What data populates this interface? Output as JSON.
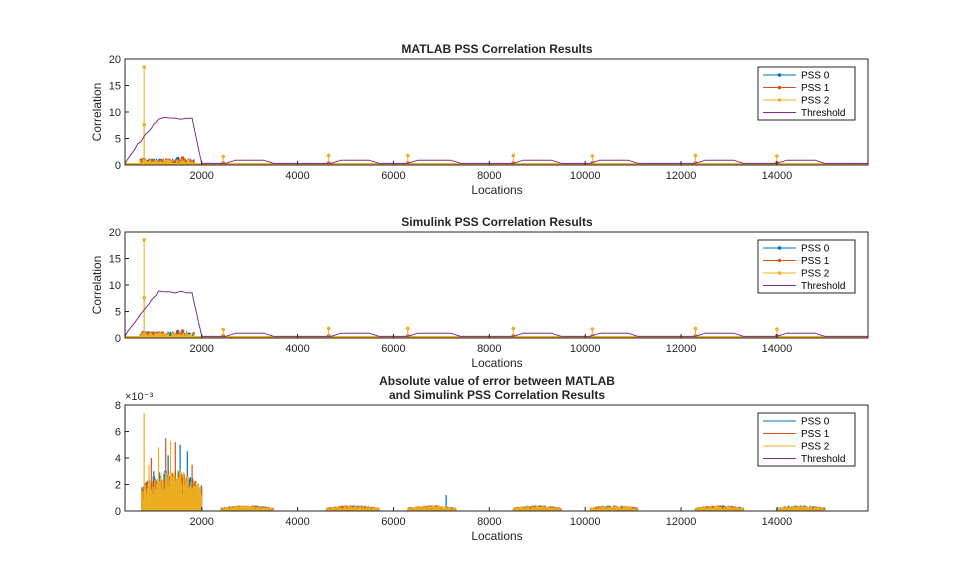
{
  "figure": {
    "colors": {
      "pss0": "#0072BD",
      "pss1": "#D95319",
      "pss2": "#EDB120",
      "threshold": "#7E2F8E"
    }
  },
  "chart_data": [
    {
      "type": "line",
      "title": "MATLAB PSS Correlation Results",
      "xlabel": "Locations",
      "ylabel": "Correlation",
      "xlim": [
        400,
        15900
      ],
      "ylim": [
        0,
        20
      ],
      "xticks": [
        "2000",
        "4000",
        "6000",
        "8000",
        "10000",
        "12000",
        "14000"
      ],
      "yticks": [
        "0",
        "5",
        "10",
        "15",
        "20"
      ],
      "exponent_label": "",
      "legend_position": "top-right",
      "markers": true,
      "series": [
        {
          "name": "PSS 0",
          "color_key": "pss0",
          "peaks": [
            [
              780,
              0.8
            ],
            [
              1500,
              1.2
            ],
            [
              2450,
              0.3
            ],
            [
              4650,
              0.3
            ],
            [
              6300,
              0.3
            ],
            [
              8500,
              0.3
            ],
            [
              10150,
              0.3
            ],
            [
              12300,
              0.3
            ],
            [
              14000,
              0.3
            ]
          ]
        },
        {
          "name": "PSS 1",
          "color_key": "pss1",
          "peaks": [
            [
              780,
              1.0
            ],
            [
              1600,
              1.3
            ],
            [
              2450,
              0.4
            ],
            [
              4650,
              0.4
            ],
            [
              6300,
              0.4
            ],
            [
              8500,
              0.4
            ],
            [
              10150,
              0.4
            ],
            [
              12300,
              0.4
            ],
            [
              14000,
              0.4
            ]
          ]
        },
        {
          "name": "PSS 2",
          "color_key": "pss2",
          "peaks": [
            [
              800,
              18.5
            ],
            [
              800,
              7.6
            ],
            [
              2450,
              1.6
            ],
            [
              4650,
              1.8
            ],
            [
              6300,
              1.8
            ],
            [
              8500,
              1.8
            ],
            [
              10150,
              1.7
            ],
            [
              12300,
              1.8
            ],
            [
              14000,
              1.7
            ]
          ]
        },
        {
          "name": "Threshold",
          "color_key": "threshold",
          "segments": [
            {
              "x": [
                400,
                800,
                1100,
                1800,
                2000
              ],
              "y": [
                0.3,
                5.5,
                8.8,
                8.6,
                0.3
              ]
            },
            {
              "x": [
                2000,
                2500,
                2700,
                3300,
                3500
              ],
              "y": [
                0.3,
                0.3,
                0.9,
                0.9,
                0.3
              ]
            },
            {
              "x": [
                3500,
                4700,
                4900,
                5500,
                5700
              ],
              "y": [
                0.3,
                0.3,
                0.9,
                0.9,
                0.3
              ]
            },
            {
              "x": [
                5700,
                6300,
                6500,
                7200,
                7400
              ],
              "y": [
                0.3,
                0.3,
                0.9,
                0.9,
                0.3
              ]
            },
            {
              "x": [
                7400,
                8500,
                8700,
                9300,
                9500
              ],
              "y": [
                0.3,
                0.3,
                0.9,
                0.9,
                0.3
              ]
            },
            {
              "x": [
                9500,
                10100,
                10300,
                10900,
                11100
              ],
              "y": [
                0.3,
                0.3,
                0.9,
                0.9,
                0.3
              ]
            },
            {
              "x": [
                11100,
                12300,
                12500,
                13100,
                13300
              ],
              "y": [
                0.3,
                0.3,
                0.9,
                0.9,
                0.3
              ]
            },
            {
              "x": [
                13300,
                14000,
                14200,
                14800,
                15000,
                15900
              ],
              "y": [
                0.3,
                0.3,
                0.9,
                0.9,
                0.3,
                0.3
              ]
            }
          ]
        }
      ]
    },
    {
      "type": "line",
      "title": "Simulink PSS Correlation Results",
      "xlabel": "Locations",
      "ylabel": "Correlation",
      "xlim": [
        400,
        15900
      ],
      "ylim": [
        0,
        20
      ],
      "xticks": [
        "2000",
        "4000",
        "6000",
        "8000",
        "10000",
        "12000",
        "14000"
      ],
      "yticks": [
        "0",
        "5",
        "10",
        "15",
        "20"
      ],
      "exponent_label": "",
      "legend_position": "top-right",
      "markers": true,
      "series": [
        {
          "name": "PSS 0",
          "color_key": "pss0",
          "peaks": [
            [
              780,
              0.8
            ],
            [
              1500,
              1.2
            ],
            [
              2450,
              0.3
            ],
            [
              4650,
              0.3
            ],
            [
              6300,
              0.3
            ],
            [
              8500,
              0.3
            ],
            [
              10150,
              0.3
            ],
            [
              12300,
              0.3
            ],
            [
              14000,
              0.3
            ]
          ]
        },
        {
          "name": "PSS 1",
          "color_key": "pss1",
          "peaks": [
            [
              780,
              1.0
            ],
            [
              1600,
              1.3
            ],
            [
              2450,
              0.4
            ],
            [
              4650,
              0.4
            ],
            [
              6300,
              0.4
            ],
            [
              8500,
              0.4
            ],
            [
              10150,
              0.4
            ],
            [
              12300,
              0.4
            ],
            [
              14000,
              0.4
            ]
          ]
        },
        {
          "name": "PSS 2",
          "color_key": "pss2",
          "peaks": [
            [
              800,
              18.5
            ],
            [
              800,
              7.6
            ],
            [
              2450,
              1.6
            ],
            [
              4650,
              1.8
            ],
            [
              6300,
              1.8
            ],
            [
              8500,
              1.8
            ],
            [
              10150,
              1.7
            ],
            [
              12300,
              1.8
            ],
            [
              14000,
              1.7
            ]
          ]
        },
        {
          "name": "Threshold",
          "color_key": "threshold",
          "segments": [
            {
              "x": [
                400,
                800,
                1100,
                1800,
                2000
              ],
              "y": [
                0.3,
                5.5,
                8.8,
                8.6,
                0.3
              ]
            },
            {
              "x": [
                2000,
                2500,
                2700,
                3300,
                3500
              ],
              "y": [
                0.3,
                0.3,
                0.9,
                0.9,
                0.3
              ]
            },
            {
              "x": [
                3500,
                4700,
                4900,
                5500,
                5700
              ],
              "y": [
                0.3,
                0.3,
                0.9,
                0.9,
                0.3
              ]
            },
            {
              "x": [
                5700,
                6300,
                6500,
                7200,
                7400
              ],
              "y": [
                0.3,
                0.3,
                0.9,
                0.9,
                0.3
              ]
            },
            {
              "x": [
                7400,
                8500,
                8700,
                9300,
                9500
              ],
              "y": [
                0.3,
                0.3,
                0.9,
                0.9,
                0.3
              ]
            },
            {
              "x": [
                9500,
                10100,
                10300,
                10900,
                11100
              ],
              "y": [
                0.3,
                0.3,
                0.9,
                0.9,
                0.3
              ]
            },
            {
              "x": [
                11100,
                12300,
                12500,
                13100,
                13300
              ],
              "y": [
                0.3,
                0.3,
                0.9,
                0.9,
                0.3
              ]
            },
            {
              "x": [
                13300,
                14000,
                14200,
                14800,
                15000,
                15900
              ],
              "y": [
                0.3,
                0.3,
                0.9,
                0.9,
                0.3,
                0.3
              ]
            }
          ]
        }
      ]
    },
    {
      "type": "line",
      "title": "Absolute value of error between MATLAB",
      "title_line2": "and Simulink PSS Correlation Results",
      "xlabel": "Locations",
      "ylabel": "",
      "xlim": [
        400,
        15900
      ],
      "ylim": [
        0,
        8
      ],
      "xticks": [
        "2000",
        "4000",
        "6000",
        "8000",
        "10000",
        "12000",
        "14000"
      ],
      "yticks": [
        "0",
        "2",
        "4",
        "6",
        "8"
      ],
      "exponent_label": "×10⁻³",
      "legend_position": "top-right",
      "markers": false,
      "bursts": [
        {
          "x": [
            750,
            2000
          ],
          "amp": 3.2
        },
        {
          "x": [
            2400,
            3500
          ],
          "amp": 0.45
        },
        {
          "x": [
            4600,
            5700
          ],
          "amp": 0.45
        },
        {
          "x": [
            6300,
            7300
          ],
          "amp": 0.45
        },
        {
          "x": [
            8500,
            9500
          ],
          "amp": 0.45
        },
        {
          "x": [
            10100,
            11100
          ],
          "amp": 0.45
        },
        {
          "x": [
            12300,
            13300
          ],
          "amp": 0.45
        },
        {
          "x": [
            14000,
            15000
          ],
          "amp": 0.45
        }
      ],
      "series": [
        {
          "name": "PSS 0",
          "color_key": "pss0",
          "spikes": [
            [
              1000,
              3.0
            ],
            [
              1300,
              4.2
            ],
            [
              1550,
              5.0
            ],
            [
              1700,
              4.5
            ],
            [
              7100,
              1.2
            ]
          ]
        },
        {
          "name": "PSS 1",
          "color_key": "pss1",
          "spikes": [
            [
              950,
              4.0
            ],
            [
              1250,
              5.5
            ],
            [
              1450,
              5.2
            ],
            [
              1800,
              3.5
            ]
          ]
        },
        {
          "name": "PSS 2",
          "color_key": "pss2",
          "spikes": [
            [
              800,
              7.4
            ],
            [
              900,
              3.5
            ],
            [
              1100,
              4.8
            ],
            [
              1350,
              5.3
            ]
          ]
        },
        {
          "name": "Threshold",
          "color_key": "threshold",
          "flat": 0
        }
      ]
    }
  ]
}
